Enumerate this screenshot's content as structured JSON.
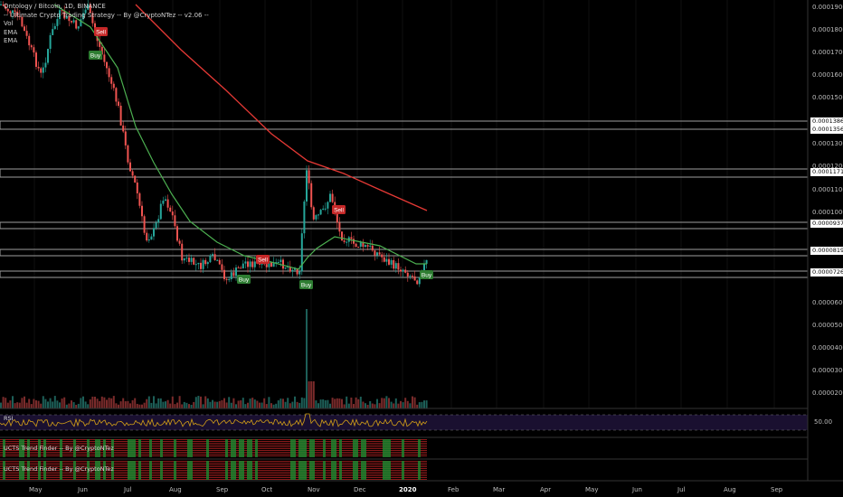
{
  "header": {
    "title": "Ontology / Bitcoin, 1D, BINANCE",
    "strategy": "-- Ultimate Crypto Trading Strategy -- By @CryptoNTez -- v2.06 --",
    "indicators": [
      "Vol",
      "EMA",
      "EMA"
    ]
  },
  "price_axis": {
    "labels": [
      "0.00019000",
      "0.00018000",
      "0.00017000",
      "0.00016000",
      "0.00015000",
      "0.00013000",
      "0.00012000",
      "0.00011000",
      "0.00010000",
      "0.00006000",
      "0.00005000",
      "0.00004000",
      "0.00003000",
      "0.00002000"
    ],
    "highlighted": [
      "0.00013860",
      "0.00013569",
      "0.00011710",
      "0.00009370",
      "0.00008190",
      "0.00007260"
    ]
  },
  "time_axis": [
    "May",
    "Jun",
    "Jul",
    "Aug",
    "Sep",
    "Oct",
    "Nov",
    "Dec",
    "2020",
    "Feb",
    "Mar",
    "Apr",
    "May",
    "Jun",
    "Jul",
    "Aug",
    "Sep"
  ],
  "signals": [
    {
      "label": "Sell",
      "type": "sell"
    },
    {
      "label": "Buy",
      "type": "buy"
    },
    {
      "label": "Sell",
      "type": "sell"
    },
    {
      "label": "Buy",
      "type": "buy"
    },
    {
      "label": "Sell",
      "type": "sell"
    },
    {
      "label": "Buy",
      "type": "buy"
    },
    {
      "label": "Buy",
      "type": "buy"
    }
  ],
  "rsi": {
    "title": "RSI",
    "level_label": "50.00"
  },
  "trend_finder_1": {
    "title": "UCTS Trend Finder -- By @CryptoNTez"
  },
  "trend_finder_2": {
    "title": "UCTS Trend Finder -- By @CryptoNTez"
  },
  "colors": {
    "background": "#000000",
    "ema_fast": "#4caf50",
    "ema_slow": "#e53935",
    "buy": "#2e7d32",
    "sell": "#c62828",
    "up_candle": "#26a69a",
    "down_candle": "#ef5350",
    "rsi_line": "#d4a017",
    "rsi_band": "#1a1030"
  }
}
